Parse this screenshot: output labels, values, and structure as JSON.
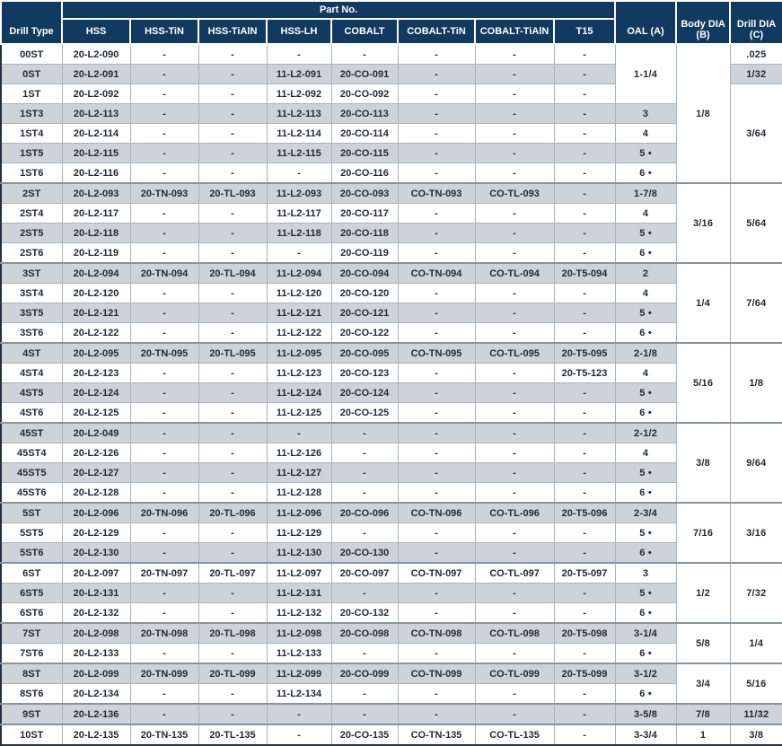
{
  "theme": {
    "header_bg": "#123a60",
    "header_text": "#ffffff",
    "stripe_bg": "#ccd3d9",
    "body_text": "#232a35",
    "grid_line": "#a9b3bb",
    "group_line": "#87939d",
    "outer_border": "#22303f"
  },
  "header": {
    "drill_type": "Drill Type",
    "part_no_group": "Part No.",
    "part_columns": [
      "HSS",
      "HSS-TiN",
      "HSS-TiAlN",
      "HSS-LH",
      "COBALT",
      "COBALT-TiN",
      "COBALT-TiAlN",
      "T15"
    ],
    "oal": "OAL (A)",
    "body_dia_line1": "Body DIA",
    "body_dia_line2": "(B)",
    "drill_dia_line1": "Drill DIA",
    "drill_dia_line2": "(C)"
  },
  "table": {
    "rows": [
      {
        "type": "00ST",
        "parts": [
          "20-L2-090",
          "-",
          "-",
          "-",
          "-",
          "-",
          "-",
          "-"
        ],
        "oal": {
          "v": "1-1/4",
          "span": 3
        },
        "body": {
          "v": "1/8",
          "span": 7
        },
        "drill": {
          "v": ".025",
          "span": 1
        }
      },
      {
        "type": "0ST",
        "parts": [
          "20-L2-091",
          "-",
          "-",
          "11-L2-091",
          "20-CO-091",
          "-",
          "-",
          "-"
        ],
        "drill": {
          "v": "1/32",
          "span": 1
        }
      },
      {
        "type": "1ST",
        "parts": [
          "20-L2-092",
          "-",
          "-",
          "11-L2-092",
          "20-CO-092",
          "-",
          "-",
          "-"
        ],
        "drill": {
          "v": "3/64",
          "span": 5
        }
      },
      {
        "type": "1ST3",
        "parts": [
          "20-L2-113",
          "-",
          "-",
          "11-L2-113",
          "20-CO-113",
          "-",
          "-",
          "-"
        ],
        "oal": {
          "v": "3",
          "span": 1
        }
      },
      {
        "type": "1ST4",
        "parts": [
          "20-L2-114",
          "-",
          "-",
          "11-L2-114",
          "20-CO-114",
          "-",
          "-",
          "-"
        ],
        "oal": {
          "v": "4",
          "span": 1
        }
      },
      {
        "type": "1ST5",
        "parts": [
          "20-L2-115",
          "-",
          "-",
          "11-L2-115",
          "20-CO-115",
          "-",
          "-",
          "-"
        ],
        "oal": {
          "v": "5 •",
          "span": 1
        }
      },
      {
        "type": "1ST6",
        "parts": [
          "20-L2-116",
          "-",
          "-",
          "-",
          "20-CO-116",
          "-",
          "-",
          "-"
        ],
        "oal": {
          "v": "6 •",
          "span": 1
        }
      },
      {
        "type": "2ST",
        "group": true,
        "parts": [
          "20-L2-093",
          "20-TN-093",
          "20-TL-093",
          "11-L2-093",
          "20-CO-093",
          "CO-TN-093",
          "CO-TL-093",
          "-"
        ],
        "oal": {
          "v": "1-7/8",
          "span": 1
        },
        "body": {
          "v": "3/16",
          "span": 4
        },
        "drill": {
          "v": "5/64",
          "span": 4
        }
      },
      {
        "type": "2ST4",
        "parts": [
          "20-L2-117",
          "-",
          "-",
          "11-L2-117",
          "20-CO-117",
          "-",
          "-",
          "-"
        ],
        "oal": {
          "v": "4",
          "span": 1
        }
      },
      {
        "type": "2ST5",
        "parts": [
          "20-L2-118",
          "-",
          "-",
          "11-L2-118",
          "20-CO-118",
          "-",
          "-",
          "-"
        ],
        "oal": {
          "v": "5 •",
          "span": 1
        }
      },
      {
        "type": "2ST6",
        "parts": [
          "20-L2-119",
          "-",
          "-",
          "-",
          "20-CO-119",
          "-",
          "-",
          "-"
        ],
        "oal": {
          "v": "6 •",
          "span": 1
        }
      },
      {
        "type": "3ST",
        "group": true,
        "parts": [
          "20-L2-094",
          "20-TN-094",
          "20-TL-094",
          "11-L2-094",
          "20-CO-094",
          "CO-TN-094",
          "CO-TL-094",
          "20-T5-094"
        ],
        "oal": {
          "v": "2",
          "span": 1
        },
        "body": {
          "v": "1/4",
          "span": 4
        },
        "drill": {
          "v": "7/64",
          "span": 4
        }
      },
      {
        "type": "3ST4",
        "parts": [
          "20-L2-120",
          "-",
          "-",
          "11-L2-120",
          "20-CO-120",
          "-",
          "-",
          "-"
        ],
        "oal": {
          "v": "4",
          "span": 1
        }
      },
      {
        "type": "3ST5",
        "parts": [
          "20-L2-121",
          "-",
          "-",
          "11-L2-121",
          "20-CO-121",
          "-",
          "-",
          "-"
        ],
        "oal": {
          "v": "5 •",
          "span": 1
        }
      },
      {
        "type": "3ST6",
        "parts": [
          "20-L2-122",
          "-",
          "-",
          "11-L2-122",
          "20-CO-122",
          "-",
          "-",
          "-"
        ],
        "oal": {
          "v": "6 •",
          "span": 1
        }
      },
      {
        "type": "4ST",
        "group": true,
        "parts": [
          "20-L2-095",
          "20-TN-095",
          "20-TL-095",
          "11-L2-095",
          "20-CO-095",
          "CO-TN-095",
          "CO-TL-095",
          "20-T5-095"
        ],
        "oal": {
          "v": "2-1/8",
          "span": 1
        },
        "body": {
          "v": "5/16",
          "span": 4
        },
        "drill": {
          "v": "1/8",
          "span": 4
        }
      },
      {
        "type": "4ST4",
        "parts": [
          "20-L2-123",
          "-",
          "-",
          "11-L2-123",
          "20-CO-123",
          "-",
          "-",
          "20-T5-123"
        ],
        "oal": {
          "v": "4",
          "span": 1
        }
      },
      {
        "type": "4ST5",
        "parts": [
          "20-L2-124",
          "-",
          "-",
          "11-L2-124",
          "20-CO-124",
          "-",
          "-",
          "-"
        ],
        "oal": {
          "v": "5 •",
          "span": 1
        }
      },
      {
        "type": "4ST6",
        "parts": [
          "20-L2-125",
          "-",
          "-",
          "11-L2-125",
          "20-CO-125",
          "-",
          "-",
          "-"
        ],
        "oal": {
          "v": "6 •",
          "span": 1
        }
      },
      {
        "type": "45ST",
        "group": true,
        "parts": [
          "20-L2-049",
          "-",
          "-",
          "-",
          "-",
          "-",
          "-",
          "-"
        ],
        "oal": {
          "v": "2-1/2",
          "span": 1
        },
        "body": {
          "v": "3/8",
          "span": 4
        },
        "drill": {
          "v": "9/64",
          "span": 4
        }
      },
      {
        "type": "45ST4",
        "parts": [
          "20-L2-126",
          "-",
          "-",
          "11-L2-126",
          "-",
          "-",
          "-",
          "-"
        ],
        "oal": {
          "v": "4",
          "span": 1
        }
      },
      {
        "type": "45ST5",
        "parts": [
          "20-L2-127",
          "-",
          "-",
          "11-L2-127",
          "-",
          "-",
          "-",
          "-"
        ],
        "oal": {
          "v": "5 •",
          "span": 1
        }
      },
      {
        "type": "45ST6",
        "parts": [
          "20-L2-128",
          "-",
          "-",
          "11-L2-128",
          "-",
          "-",
          "-",
          "-"
        ],
        "oal": {
          "v": "6 •",
          "span": 1
        }
      },
      {
        "type": "5ST",
        "group": true,
        "parts": [
          "20-L2-096",
          "20-TN-096",
          "20-TL-096",
          "11-L2-096",
          "20-CO-096",
          "CO-TN-096",
          "CO-TL-096",
          "20-T5-096"
        ],
        "oal": {
          "v": "2-3/4",
          "span": 1
        },
        "body": {
          "v": "7/16",
          "span": 3
        },
        "drill": {
          "v": "3/16",
          "span": 3
        }
      },
      {
        "type": "5ST5",
        "parts": [
          "20-L2-129",
          "-",
          "-",
          "11-L2-129",
          "-",
          "-",
          "-",
          "-"
        ],
        "oal": {
          "v": "5 •",
          "span": 1
        }
      },
      {
        "type": "5ST6",
        "parts": [
          "20-L2-130",
          "-",
          "-",
          "11-L2-130",
          "20-CO-130",
          "-",
          "-",
          "-"
        ],
        "oal": {
          "v": "6 •",
          "span": 1
        }
      },
      {
        "type": "6ST",
        "group": true,
        "parts": [
          "20-L2-097",
          "20-TN-097",
          "20-TL-097",
          "11-L2-097",
          "20-CO-097",
          "CO-TN-097",
          "CO-TL-097",
          "20-T5-097"
        ],
        "oal": {
          "v": "3",
          "span": 1
        },
        "body": {
          "v": "1/2",
          "span": 3
        },
        "drill": {
          "v": "7/32",
          "span": 3
        }
      },
      {
        "type": "6ST5",
        "parts": [
          "20-L2-131",
          "-",
          "-",
          "11-L2-131",
          "-",
          "-",
          "-",
          "-"
        ],
        "oal": {
          "v": "5 •",
          "span": 1
        }
      },
      {
        "type": "6ST6",
        "parts": [
          "20-L2-132",
          "-",
          "-",
          "11-L2-132",
          "20-CO-132",
          "-",
          "-",
          "-"
        ],
        "oal": {
          "v": "6 •",
          "span": 1
        }
      },
      {
        "type": "7ST",
        "group": true,
        "parts": [
          "20-L2-098",
          "20-TN-098",
          "20-TL-098",
          "11-L2-098",
          "20-CO-098",
          "CO-TN-098",
          "CO-TL-098",
          "20-T5-098"
        ],
        "oal": {
          "v": "3-1/4",
          "span": 1
        },
        "body": {
          "v": "5/8",
          "span": 2
        },
        "drill": {
          "v": "1/4",
          "span": 2
        }
      },
      {
        "type": "7ST6",
        "parts": [
          "20-L2-133",
          "-",
          "-",
          "11-L2-133",
          "-",
          "-",
          "-",
          "-"
        ],
        "oal": {
          "v": "6 •",
          "span": 1
        }
      },
      {
        "type": "8ST",
        "group": true,
        "parts": [
          "20-L2-099",
          "20-TN-099",
          "20-TL-099",
          "11-L2-099",
          "20-CO-099",
          "CO-TN-099",
          "CO-TL-099",
          "20-T5-099"
        ],
        "oal": {
          "v": "3-1/2",
          "span": 1
        },
        "body": {
          "v": "3/4",
          "span": 2
        },
        "drill": {
          "v": "5/16",
          "span": 2
        }
      },
      {
        "type": "8ST6",
        "parts": [
          "20-L2-134",
          "-",
          "-",
          "11-L2-134",
          "-",
          "-",
          "-",
          "-"
        ],
        "oal": {
          "v": "6 •",
          "span": 1
        }
      },
      {
        "type": "9ST",
        "group": true,
        "parts": [
          "20-L2-136",
          "-",
          "-",
          "-",
          "-",
          "-",
          "-",
          "-"
        ],
        "oal": {
          "v": "3-5/8",
          "span": 1
        },
        "body": {
          "v": "7/8",
          "span": 1
        },
        "drill": {
          "v": "11/32",
          "span": 1
        }
      },
      {
        "type": "10ST",
        "group": true,
        "parts": [
          "20-L2-135",
          "20-TN-135",
          "20-TL-135",
          "-",
          "20-CO-135",
          "CO-TN-135",
          "CO-TL-135",
          "-"
        ],
        "oal": {
          "v": "3-3/4",
          "span": 1
        },
        "body": {
          "v": "1",
          "span": 1
        },
        "drill": {
          "v": "3/8",
          "span": 1
        }
      }
    ]
  }
}
